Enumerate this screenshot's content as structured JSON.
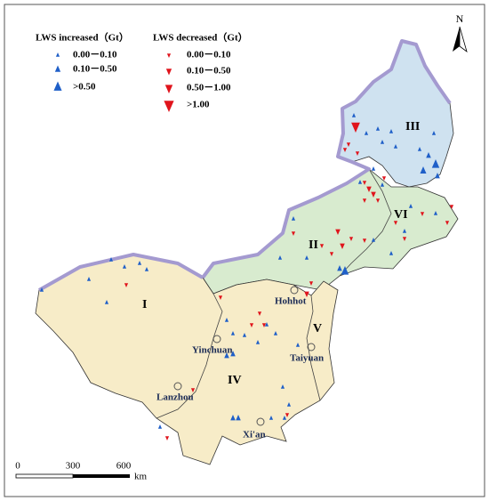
{
  "north": "N",
  "legend": {
    "increased": {
      "title": "LWS increased（Gt）",
      "items": [
        "0.00－0.10",
        "0.10－0.50",
        ">0.50"
      ]
    },
    "decreased": {
      "title": "LWS decreased（Gt）",
      "items": [
        "0.00－0.10",
        "0.10－0.50",
        "0.50－1.00",
        ">1.00"
      ]
    }
  },
  "regions": [
    "I",
    "II",
    "III",
    "IV",
    "V",
    "VI"
  ],
  "cities": [
    "Hohhot",
    "Yinchuan",
    "Taiyuan",
    "Lanzhou",
    "Xi'an"
  ],
  "scale_bar": {
    "labels": [
      "0",
      "300",
      "600"
    ],
    "unit": "km"
  }
}
